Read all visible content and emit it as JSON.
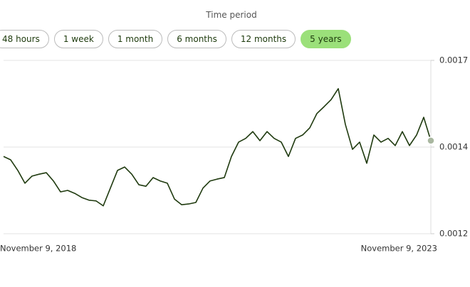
{
  "controls": {
    "label": "Time period",
    "options": [
      "48 hours",
      "1 week",
      "1 month",
      "6 months",
      "12 months",
      "5 years"
    ],
    "selected_index": 5
  },
  "chart_data": {
    "type": "line",
    "color": "#1f3a0f",
    "grid": true,
    "categories": [
      "November 9, 2018",
      null,
      null,
      null,
      null,
      null,
      null,
      null,
      null,
      null,
      null,
      null,
      null,
      null,
      null,
      null,
      null,
      null,
      null,
      null,
      null,
      null,
      null,
      null,
      null,
      null,
      null,
      null,
      null,
      null,
      null,
      null,
      null,
      null,
      null,
      null,
      null,
      null,
      null,
      null,
      null,
      null,
      null,
      null,
      null,
      null,
      null,
      null,
      null,
      null,
      null,
      null,
      null,
      null,
      null,
      null,
      null,
      null,
      null,
      null,
      "November 9, 2023"
    ],
    "values": [
      0.001405,
      0.001396,
      0.001368,
      0.001334,
      0.001353,
      0.001358,
      0.001362,
      0.00134,
      0.001311,
      0.001315,
      0.001307,
      0.001296,
      0.001289,
      0.001287,
      0.001274,
      0.001321,
      0.001368,
      0.001377,
      0.001358,
      0.00133,
      0.001326,
      0.001349,
      0.00134,
      0.001334,
      0.001292,
      0.001277,
      0.001279,
      0.001283,
      0.001321,
      0.00134,
      0.001345,
      0.001349,
      0.001405,
      0.001443,
      0.001453,
      0.001471,
      0.001447,
      0.001471,
      0.001453,
      0.001443,
      0.001405,
      0.001453,
      0.001462,
      0.001481,
      0.001519,
      0.001537,
      0.001556,
      0.001585,
      0.00149,
      0.001424,
      0.001443,
      0.001387,
      0.001462,
      0.001443,
      0.001453,
      0.001434,
      0.001471,
      0.001434,
      0.001462,
      0.001509,
      0.001447
    ],
    "ylim": [
      0.0012,
      0.00166
    ],
    "yticks": [
      0.0012,
      {
        "value": 0.00143,
        "label": "0.0014"
      },
      {
        "value": 0.00166,
        "label": "0.0017"
      }
    ]
  }
}
